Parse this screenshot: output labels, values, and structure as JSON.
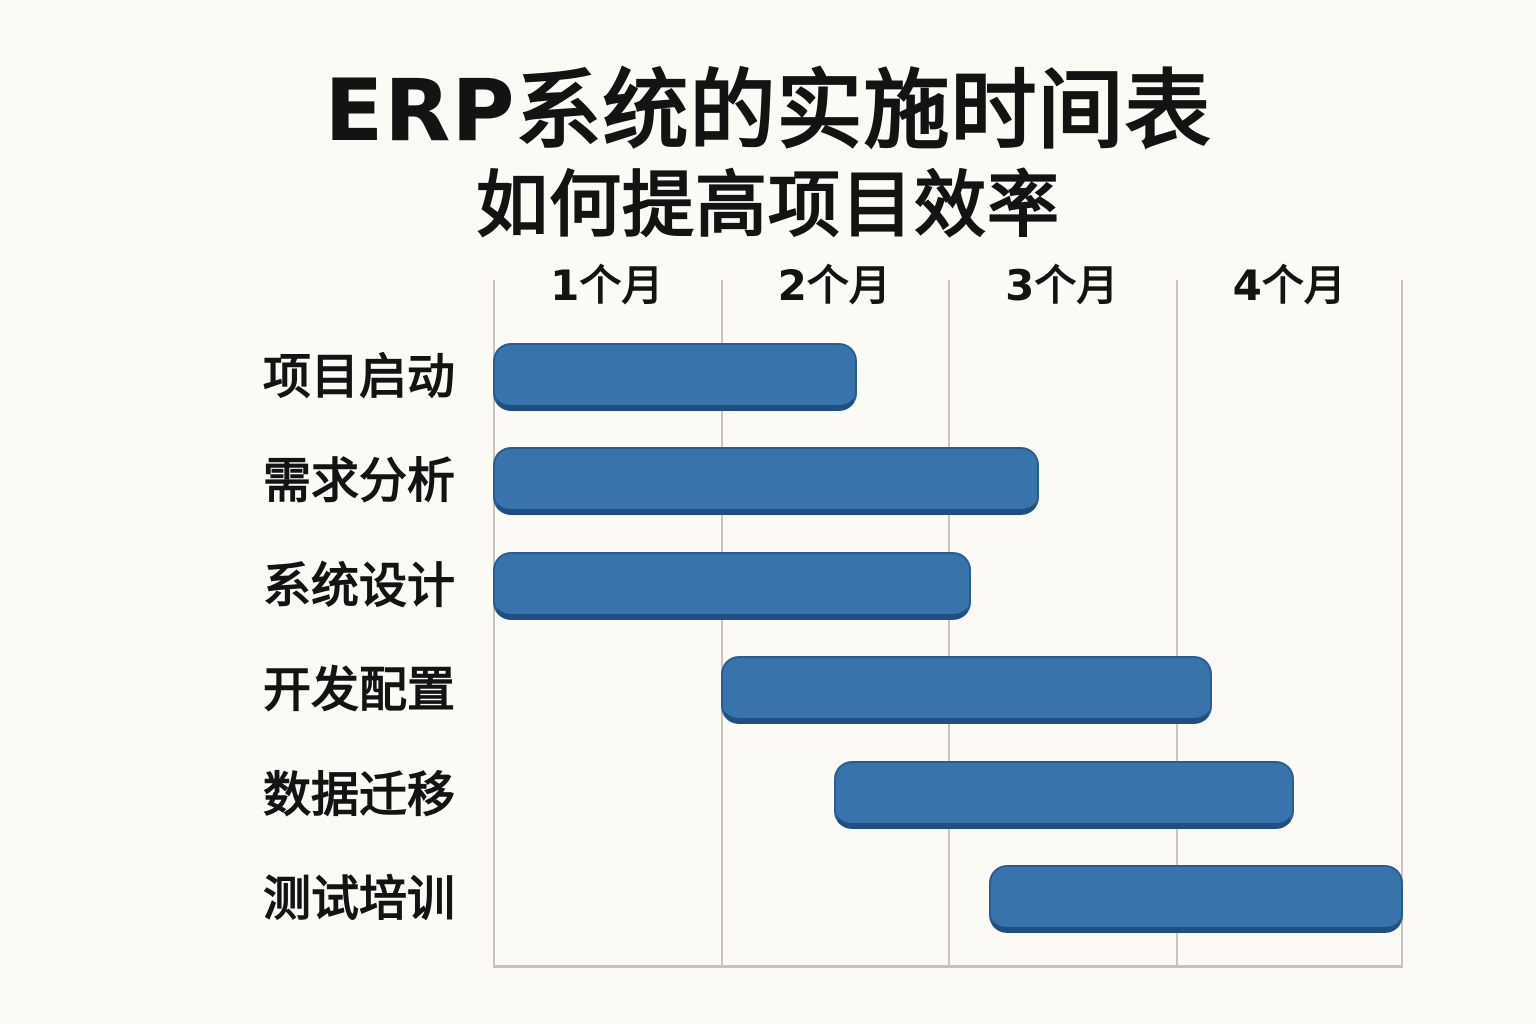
{
  "chart_data": {
    "type": "bar",
    "variant": "gantt",
    "title": "ERP系统的实施时间表",
    "subtitle": "如何提高项目效率",
    "x_ticks": [
      "1个月",
      "2个月",
      "3个月",
      "4个月"
    ],
    "xlim": [
      0,
      4
    ],
    "grid": true,
    "legend": "none",
    "colors": {
      "background": "#fcfaf5",
      "bar_fill": "#3873ac",
      "bar_edge": "#1f4f80",
      "gridline": "#c9c5be",
      "text": "#131313"
    },
    "tasks": [
      {
        "label": "项目启动",
        "start_month": 0,
        "end_month": 1.6
      },
      {
        "label": "需求分析",
        "start_month": 0,
        "end_month": 2.4
      },
      {
        "label": "系统设计",
        "start_month": 0,
        "end_month": 2.1
      },
      {
        "label": "开发配置",
        "start_month": 1.0,
        "end_month": 3.16
      },
      {
        "label": "数据迁移",
        "start_month": 1.5,
        "end_month": 3.52
      },
      {
        "label": "测试培训",
        "start_month": 2.18,
        "end_month": 4.0
      }
    ]
  }
}
